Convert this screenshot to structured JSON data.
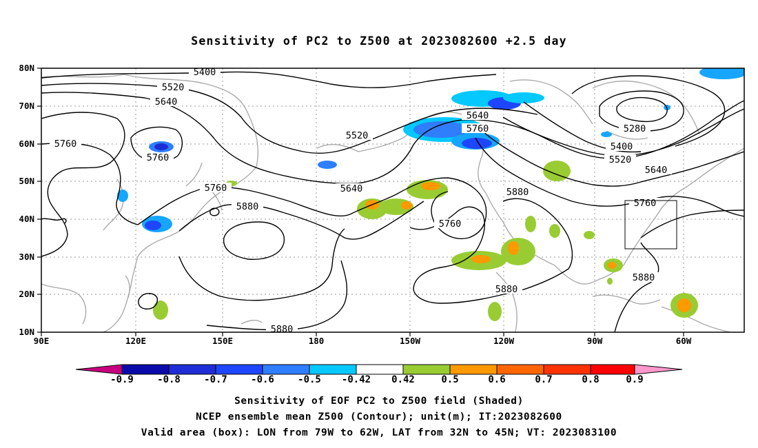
{
  "title": "Sensitivity of PC2 to Z500 at 2023082600 +2.5 day",
  "latitude_labels": [
    "80N",
    "70N",
    "60N",
    "50N",
    "40N",
    "30N",
    "20N",
    "10N"
  ],
  "longitude_labels": [
    "90E",
    "120E",
    "150E",
    "180",
    "150W",
    "120W",
    "90W",
    "60W"
  ],
  "contour_labels": [
    "5400",
    "5520",
    "5640",
    "5760",
    "5760",
    "5520",
    "5640",
    "5760",
    "5880",
    "5640",
    "5760",
    "5760",
    "5880",
    "5880",
    "5880",
    "5280",
    "5400",
    "5520",
    "5640",
    "5760",
    "5880"
  ],
  "valid_area_box": {
    "lon_from": "79W",
    "lon_to": "62W",
    "lat_from": "32N",
    "lat_to": "45N"
  },
  "colorbar": {
    "labels": [
      "-0.9",
      "-0.8",
      "-0.7",
      "-0.6",
      "-0.5",
      "-0.42",
      "0.42",
      "0.5",
      "0.6",
      "0.7",
      "0.8",
      "0.9"
    ],
    "colors": [
      "#c8007f",
      "#0a0aaa",
      "#1f2dd6",
      "#1e46ff",
      "#2e7eff",
      "#16a6ff",
      "#05c8ff",
      "#ffffff",
      "#99cc33",
      "#ff9900",
      "#ff6600",
      "#ff3300",
      "#ff0000",
      "#ff99cc"
    ]
  },
  "captions": [
    "Sensitivity of EOF PC2 to Z500 field (Shaded)",
    "NCEP ensemble mean Z500 (Contour); unit(m); IT:2023082600",
    "Valid area (box): LON from 79W to 62W, LAT from 32N to 45N; VT: 2023083100"
  ]
}
